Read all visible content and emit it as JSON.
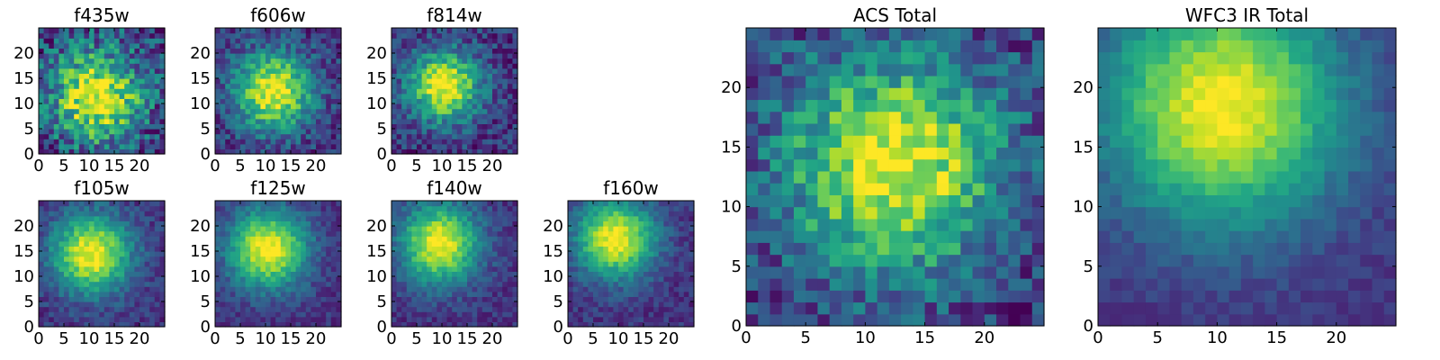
{
  "chart_data": [
    {
      "type": "heatmap",
      "title": "f435w",
      "x_ticks": [
        "0",
        "5",
        "10",
        "15",
        "20"
      ],
      "y_ticks": [
        "0",
        "5",
        "10",
        "15",
        "20"
      ],
      "xlim": [
        0,
        25
      ],
      "ylim": [
        0,
        25
      ],
      "grid_size": 25,
      "colormap": "viridis",
      "peak": {
        "x": 11,
        "y": 11
      },
      "spread": 6.5,
      "noise": 0.55,
      "seed": 11
    },
    {
      "type": "heatmap",
      "title": "f606w",
      "x_ticks": [
        "0",
        "5",
        "10",
        "15",
        "20"
      ],
      "y_ticks": [
        "0",
        "5",
        "10",
        "15",
        "20"
      ],
      "xlim": [
        0,
        25
      ],
      "ylim": [
        0,
        25
      ],
      "grid_size": 25,
      "colormap": "viridis",
      "peak": {
        "x": 11,
        "y": 12
      },
      "spread": 5.5,
      "noise": 0.35,
      "seed": 23
    },
    {
      "type": "heatmap",
      "title": "f814w",
      "x_ticks": [
        "0",
        "5",
        "10",
        "15",
        "20"
      ],
      "y_ticks": [
        "0",
        "5",
        "10",
        "15",
        "20"
      ],
      "xlim": [
        0,
        25
      ],
      "ylim": [
        0,
        25
      ],
      "grid_size": 25,
      "colormap": "viridis",
      "peak": {
        "x": 10,
        "y": 13
      },
      "spread": 5.0,
      "noise": 0.35,
      "seed": 37
    },
    {
      "type": "heatmap",
      "title": "f105w",
      "x_ticks": [
        "0",
        "5",
        "10",
        "15",
        "20"
      ],
      "y_ticks": [
        "0",
        "5",
        "10",
        "15",
        "20"
      ],
      "xlim": [
        0,
        25
      ],
      "ylim": [
        0,
        25
      ],
      "grid_size": 25,
      "colormap": "viridis",
      "peak": {
        "x": 10,
        "y": 14
      },
      "spread": 5.5,
      "noise": 0.22,
      "seed": 41
    },
    {
      "type": "heatmap",
      "title": "f125w",
      "x_ticks": [
        "0",
        "5",
        "10",
        "15",
        "20"
      ],
      "y_ticks": [
        "0",
        "5",
        "10",
        "15",
        "20"
      ],
      "xlim": [
        0,
        25
      ],
      "ylim": [
        0,
        25
      ],
      "grid_size": 25,
      "colormap": "viridis",
      "peak": {
        "x": 10,
        "y": 15
      },
      "spread": 5.5,
      "noise": 0.2,
      "seed": 53
    },
    {
      "type": "heatmap",
      "title": "f140w",
      "x_ticks": [
        "0",
        "5",
        "10",
        "15",
        "20"
      ],
      "y_ticks": [
        "0",
        "5",
        "10",
        "15",
        "20"
      ],
      "xlim": [
        0,
        25
      ],
      "ylim": [
        0,
        25
      ],
      "grid_size": 25,
      "colormap": "viridis",
      "peak": {
        "x": 9,
        "y": 16
      },
      "spread": 5.5,
      "noise": 0.2,
      "seed": 67
    },
    {
      "type": "heatmap",
      "title": "f160w",
      "x_ticks": [
        "0",
        "5",
        "10",
        "15",
        "20"
      ],
      "y_ticks": [
        "0",
        "5",
        "10",
        "15",
        "20"
      ],
      "xlim": [
        0,
        25
      ],
      "ylim": [
        0,
        25
      ],
      "grid_size": 25,
      "colormap": "viridis",
      "peak": {
        "x": 9,
        "y": 17
      },
      "spread": 5.5,
      "noise": 0.2,
      "seed": 71
    },
    {
      "type": "heatmap",
      "title": "ACS Total",
      "x_ticks": [
        "0",
        "5",
        "10",
        "15",
        "20"
      ],
      "y_ticks": [
        "0",
        "5",
        "10",
        "15",
        "20"
      ],
      "xlim": [
        0,
        25
      ],
      "ylim": [
        0,
        25
      ],
      "grid_size": 25,
      "colormap": "viridis",
      "peak": {
        "x": 12,
        "y": 13
      },
      "spread": 6.5,
      "noise": 0.4,
      "seed": 83
    },
    {
      "type": "heatmap",
      "title": "WFC3 IR Total",
      "x_ticks": [
        "0",
        "5",
        "10",
        "15",
        "20"
      ],
      "y_ticks": [
        "0",
        "5",
        "10",
        "15",
        "20"
      ],
      "xlim": [
        0,
        25
      ],
      "ylim": [
        0,
        25
      ],
      "grid_size": 25,
      "colormap": "viridis",
      "peak": {
        "x": 10,
        "y": 18
      },
      "spread": 7.0,
      "noise": 0.12,
      "seed": 97
    }
  ]
}
